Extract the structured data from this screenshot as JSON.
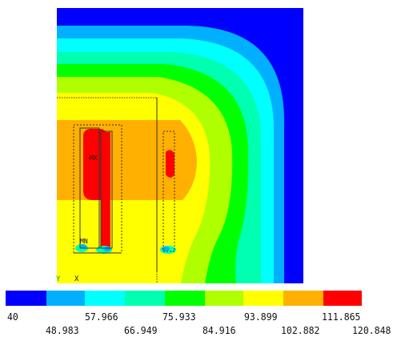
{
  "plot": {
    "colors": {
      "c1": "#0000ff",
      "c2": "#00b0ff",
      "c3": "#00ffff",
      "c4": "#00ffb0",
      "c5": "#00ff00",
      "c6": "#b0ff00",
      "c7": "#ffff00",
      "c8": "#ffb000",
      "c9": "#ff0000"
    },
    "max_label": "MX",
    "min_label": "MN",
    "axis_triad_label": "X",
    "axis_marker_label": "Y"
  },
  "legend": {
    "colors": [
      "#0000ff",
      "#00b0ff",
      "#00ffff",
      "#00ffb0",
      "#00ff00",
      "#b0ff00",
      "#ffff00",
      "#ffb000",
      "#ff0000"
    ],
    "ticks_upper": [
      "40",
      "57.966",
      "75.933",
      "93.899",
      "111.865"
    ],
    "ticks_lower": [
      "48.983",
      "66.949",
      "84.916",
      "102.882",
      "120.848"
    ]
  }
}
